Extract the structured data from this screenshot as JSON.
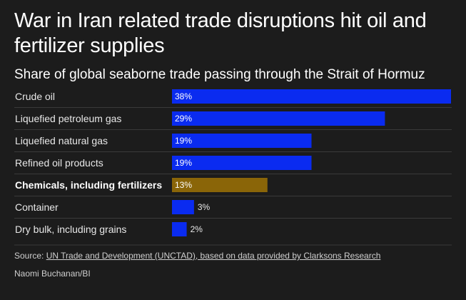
{
  "title": "War in Iran related trade disruptions hit oil and fertilizer supplies",
  "subtitle": "Share of global seaborne trade passing through the Strait of Hormuz",
  "colors": {
    "background": "#1c1c1c",
    "bar": "#0a2bf0",
    "highlight": "#8a6508",
    "divider": "#3a3a3a"
  },
  "chart_data": {
    "type": "bar",
    "orientation": "horizontal",
    "title": "Share of global seaborne trade passing through the Strait of Hormuz",
    "categories": [
      "Crude oil",
      "Liquefied petroleum gas",
      "Liquefied natural gas",
      "Refined oil products",
      "Chemicals, including fertilizers",
      "Container",
      "Dry bulk, including grains"
    ],
    "values": [
      38,
      29,
      19,
      19,
      13,
      3,
      2
    ],
    "labels": [
      "38%",
      "29%",
      "19%",
      "19%",
      "13%",
      "3%",
      "2%"
    ],
    "highlighted": [
      false,
      false,
      false,
      false,
      true,
      false,
      false
    ],
    "unit": "%",
    "xlim": [
      0,
      38
    ],
    "xlabel": "",
    "ylabel": ""
  },
  "source": {
    "prefix": "Source: ",
    "link_text": "UN Trade and Development (UNCTAD), based on data provided by Clarksons Research"
  },
  "credit": "Naomi Buchanan/BI"
}
